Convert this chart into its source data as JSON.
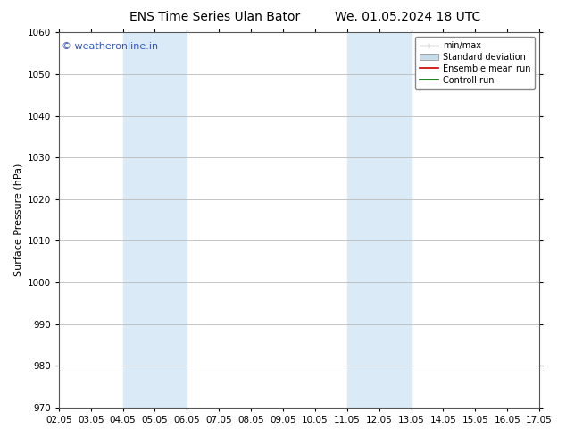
{
  "title_left": "ENS Time Series Ulan Bator",
  "title_right": "We. 01.05.2024 18 UTC",
  "ylabel": "Surface Pressure (hPa)",
  "ylim": [
    970,
    1060
  ],
  "yticks": [
    970,
    980,
    990,
    1000,
    1010,
    1020,
    1030,
    1040,
    1050,
    1060
  ],
  "xtick_labels": [
    "02.05",
    "03.05",
    "04.05",
    "05.05",
    "06.05",
    "07.05",
    "08.05",
    "09.05",
    "10.05",
    "11.05",
    "12.05",
    "13.05",
    "14.05",
    "15.05",
    "16.05",
    "17.05"
  ],
  "xtick_positions": [
    0,
    1,
    2,
    3,
    4,
    5,
    6,
    7,
    8,
    9,
    10,
    11,
    12,
    13,
    14,
    15
  ],
  "shaded_regions": [
    {
      "x_start": 2,
      "x_end": 4,
      "color": "#daeaf7"
    },
    {
      "x_start": 9,
      "x_end": 11,
      "color": "#daeaf7"
    }
  ],
  "watermark_text": "© weatheronline.in",
  "watermark_color": "#3355bb",
  "legend_entries": [
    {
      "label": "min/max",
      "color": "#aaaaaa",
      "type": "errorbar"
    },
    {
      "label": "Standard deviation",
      "color": "#c8dcea",
      "type": "patch"
    },
    {
      "label": "Ensemble mean run",
      "color": "#cc0000",
      "type": "line"
    },
    {
      "label": "Controll run",
      "color": "#006600",
      "type": "line"
    }
  ],
  "background_color": "#ffffff",
  "plot_bg_color": "#ffffff",
  "grid_color": "#bbbbbb",
  "title_fontsize": 10,
  "axis_label_fontsize": 8,
  "tick_fontsize": 7.5,
  "watermark_fontsize": 8
}
